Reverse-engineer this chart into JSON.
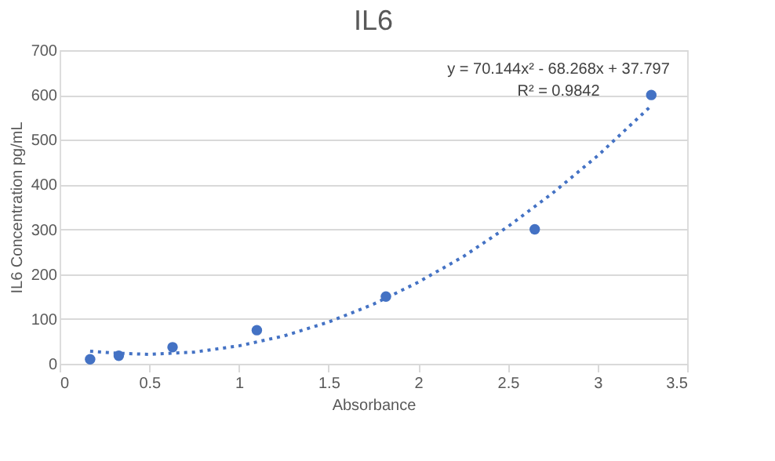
{
  "chart_data": {
    "type": "scatter",
    "title": "IL6",
    "xlabel": "Absorbance",
    "ylabel": "IL6 Concentration pg/mL",
    "x": [
      0.17,
      0.33,
      0.63,
      1.1,
      1.82,
      2.65,
      3.3
    ],
    "series": [
      {
        "color": "#4472c4",
        "values": [
          10,
          18,
          37,
          75,
          150,
          300,
          600
        ],
        "marker": "circle"
      },
      {
        "type": "line",
        "color": "#4472c4",
        "line_style": "dotted",
        "x": [
          0.17,
          0.3,
          0.5,
          0.75,
          1.0,
          1.25,
          1.5,
          1.75,
          2.0,
          2.25,
          2.5,
          2.75,
          3.0,
          3.3
        ],
        "values": [
          28,
          24,
          21,
          26,
          40,
          62,
          93,
          133,
          182,
          239,
          306,
          381,
          464,
          576
        ]
      }
    ],
    "annotations": [
      "y = 70.144x² - 68.268x + 37.797",
      "R² = 0.9842"
    ],
    "xlim": [
      0,
      3.5
    ],
    "xticks": [
      0,
      0.5,
      1,
      1.5,
      2,
      2.5,
      3,
      3.5
    ],
    "ylim": [
      0,
      700
    ],
    "yticks": [
      0,
      100,
      200,
      300,
      400,
      500,
      600,
      700
    ],
    "grid": "y"
  }
}
